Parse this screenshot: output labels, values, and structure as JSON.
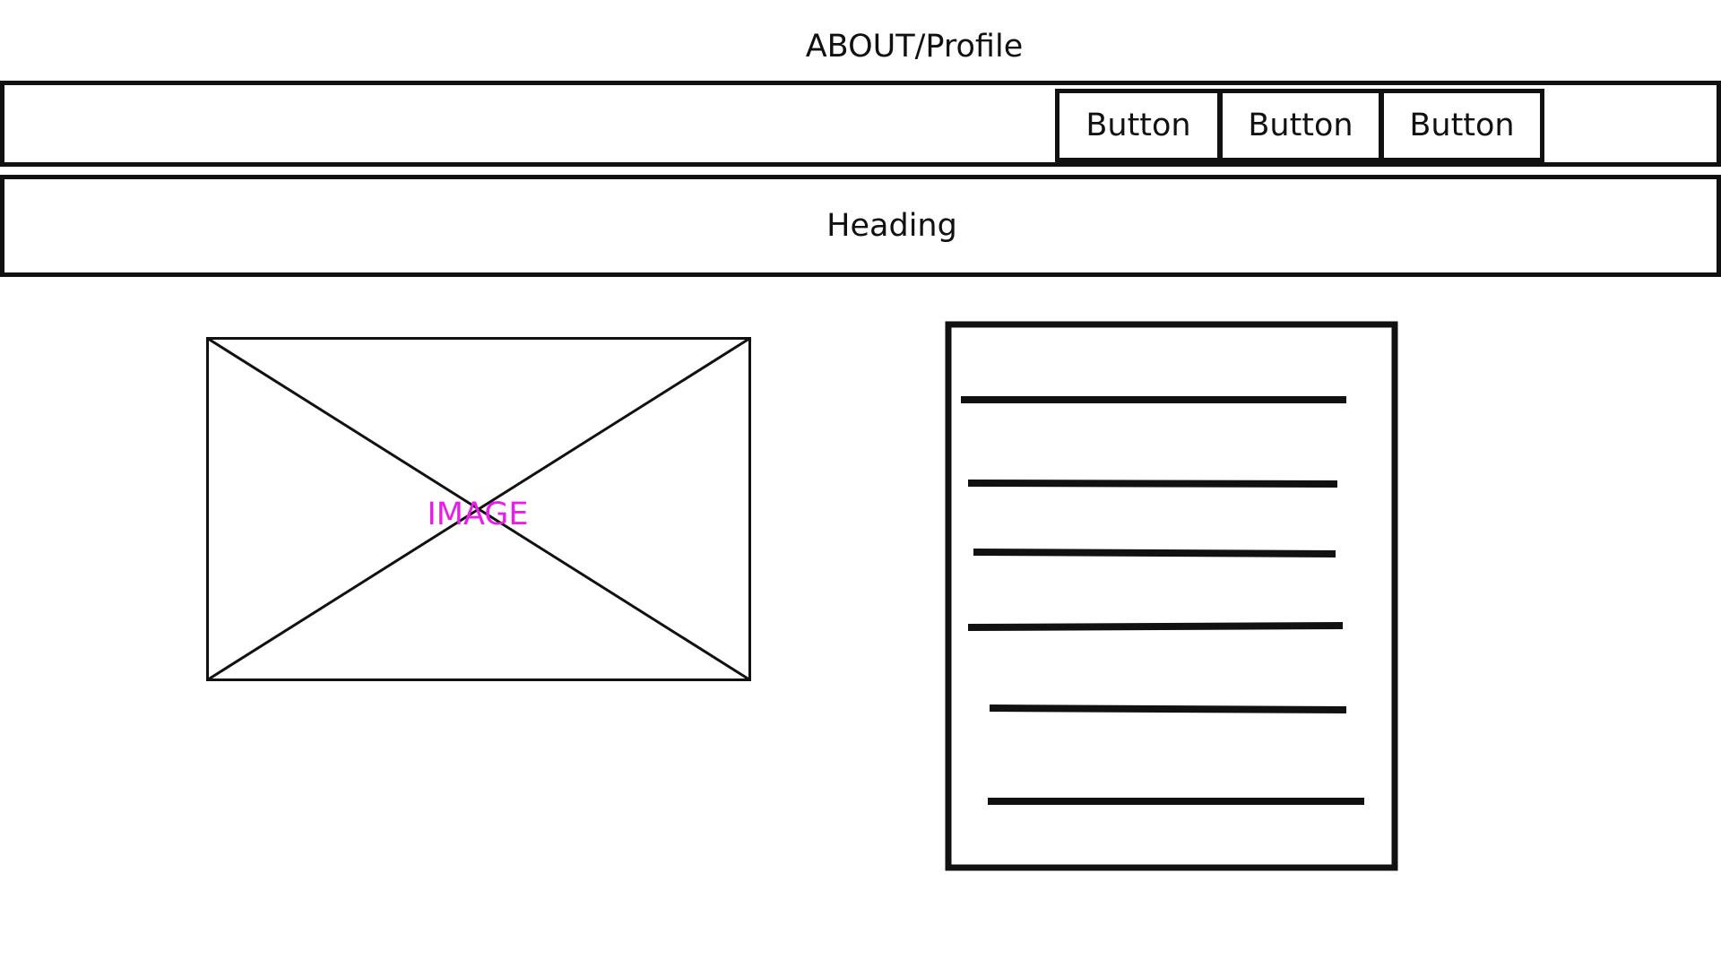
{
  "page": {
    "title": "ABOUT/Profile"
  },
  "navbar": {
    "buttons": [
      {
        "label": "Button"
      },
      {
        "label": "Button"
      },
      {
        "label": "Button"
      }
    ]
  },
  "heading": {
    "text": "Heading"
  },
  "image_placeholder": {
    "label": "IMAGE",
    "label_color": "#e81ee8"
  },
  "text_block": {
    "line_count": 6
  }
}
